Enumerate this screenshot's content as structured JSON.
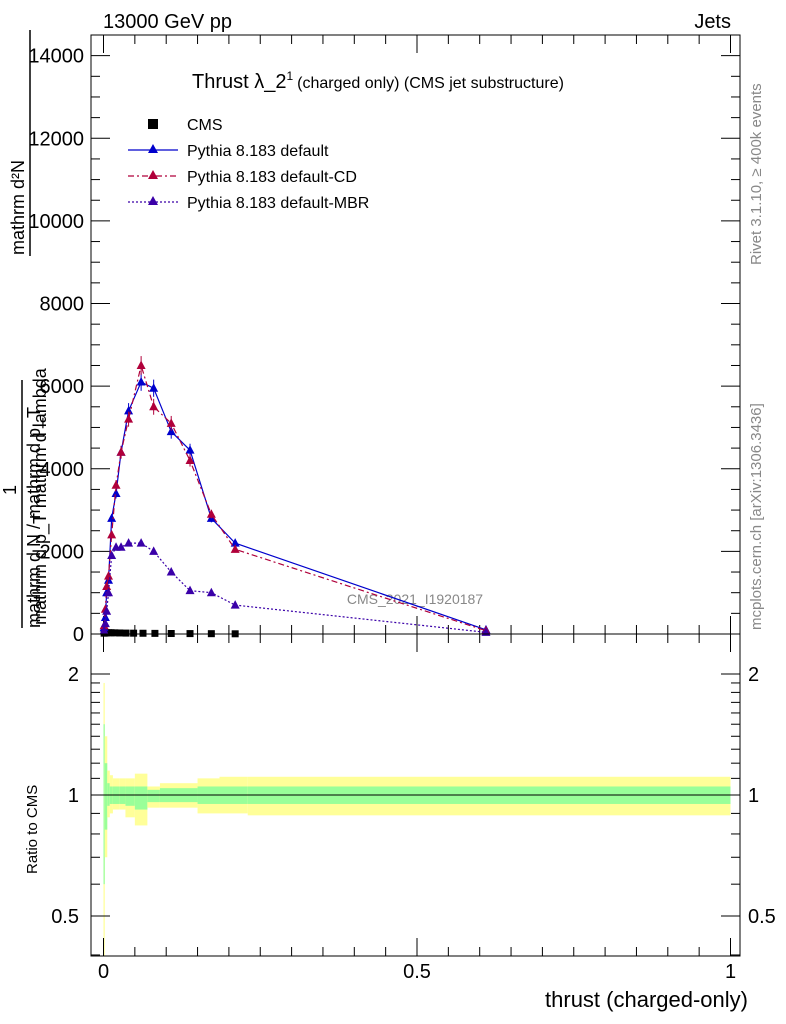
{
  "header": {
    "left": "13000 GeV pp",
    "right": "Jets"
  },
  "side": {
    "rivet": "Rivet 3.1.10, ≥ 400k events",
    "mcplots": "mcplots.cern.ch [arXiv:1306.3436]"
  },
  "watermark": "CMS_2021_I1920187",
  "ratio_ylabel": "Ratio to CMS",
  "xlabel": "thrust (charged-only)",
  "ylabel_parts": {
    "numerator": "mathrm d²N",
    "denominator": "mathrm d p_T mathrm d lambda",
    "prefix": "1",
    "prefix_den": "mathrm d N / mathrm d p_T"
  },
  "colors": {
    "cms": "#000000",
    "default": "#0000cc",
    "cd": "#b0003a",
    "mbr": "#3a00a8",
    "band_yellow": "#ffff99",
    "band_green": "#99ff99"
  },
  "chart_data": {
    "type": "line",
    "title": "Thrust λ_2",
    "title_sup": "1",
    "title_suffix": "(charged only) (CMS jet substructure)",
    "xlim": [
      0,
      1
    ],
    "ylim": [
      0,
      14500
    ],
    "x_ticks": [
      0,
      0.5,
      1
    ],
    "x_tick_labels": [
      "0",
      "0.5",
      "1"
    ],
    "y_ticks": [
      0,
      2000,
      4000,
      6000,
      8000,
      10000,
      12000,
      14000
    ],
    "y_tick_labels": [
      "0",
      "2000",
      "4000",
      "6000",
      "8000",
      "10000",
      "12000",
      "14000"
    ],
    "legend": [
      "CMS",
      "Pythia 8.183 default",
      "Pythia 8.183 default-CD",
      "Pythia 8.183 default-MBR"
    ],
    "series": [
      {
        "name": "CMS",
        "style": "points",
        "x": [
          0.001,
          0.003,
          0.005,
          0.008,
          0.012,
          0.018,
          0.026,
          0.036,
          0.048,
          0.063,
          0.082,
          0.108,
          0.138,
          0.172,
          0.21
        ],
        "y": [
          20,
          25,
          30,
          30,
          30,
          28,
          25,
          22,
          20,
          18,
          15,
          12,
          10,
          8,
          5
        ]
      },
      {
        "name": "Pythia 8.183 default",
        "style": "solid",
        "x": [
          0.001,
          0.003,
          0.005,
          0.008,
          0.013,
          0.02,
          0.028,
          0.04,
          0.06,
          0.08,
          0.108,
          0.138,
          0.172,
          0.21,
          0.61
        ],
        "y": [
          150,
          400,
          1000,
          1300,
          2800,
          3400,
          4400,
          5400,
          6100,
          5950,
          4900,
          4450,
          2800,
          2200,
          100
        ]
      },
      {
        "name": "Pythia 8.183 default-CD",
        "style": "dashdot",
        "x": [
          0.001,
          0.003,
          0.005,
          0.008,
          0.013,
          0.02,
          0.028,
          0.04,
          0.06,
          0.08,
          0.108,
          0.138,
          0.172,
          0.21,
          0.61
        ],
        "y": [
          200,
          600,
          1150,
          1400,
          2400,
          3600,
          4400,
          5200,
          6500,
          5500,
          5100,
          4200,
          2900,
          2050,
          80
        ]
      },
      {
        "name": "Pythia 8.183 default-MBR",
        "style": "dotted",
        "x": [
          0.001,
          0.003,
          0.005,
          0.008,
          0.013,
          0.02,
          0.028,
          0.04,
          0.06,
          0.08,
          0.108,
          0.138,
          0.172,
          0.21,
          0.61
        ],
        "y": [
          80,
          250,
          550,
          1000,
          1900,
          2100,
          2100,
          2200,
          2200,
          2000,
          1500,
          1050,
          1000,
          700,
          40
        ]
      }
    ],
    "ratio": {
      "ylim": [
        0.35,
        2.3
      ],
      "y_ticks": [
        0.5,
        1,
        2
      ],
      "y_tick_labels": [
        "0.5",
        "1",
        "2"
      ],
      "reference": 1,
      "band_edges": [
        0,
        0.002,
        0.006,
        0.01,
        0.015,
        0.025,
        0.035,
        0.05,
        0.07,
        0.09,
        0.15,
        0.185,
        0.23,
        1.0
      ],
      "yellow": [
        [
          0.3,
          1.9
        ],
        [
          0.7,
          1.4
        ],
        [
          0.88,
          1.15
        ],
        [
          0.9,
          1.12
        ],
        [
          0.92,
          1.1
        ],
        [
          0.92,
          1.1
        ],
        [
          0.88,
          1.1
        ],
        [
          0.84,
          1.13
        ],
        [
          0.93,
          1.05
        ],
        [
          0.93,
          1.07
        ],
        [
          0.9,
          1.1
        ],
        [
          0.9,
          1.11
        ],
        [
          0.89,
          1.11
        ]
      ],
      "green": [
        [
          0.6,
          1.5
        ],
        [
          0.82,
          1.2
        ],
        [
          0.94,
          1.07
        ],
        [
          0.95,
          1.05
        ],
        [
          0.95,
          1.05
        ],
        [
          0.95,
          1.05
        ],
        [
          0.94,
          1.05
        ],
        [
          0.92,
          1.05
        ],
        [
          0.96,
          1.03
        ],
        [
          0.96,
          1.04
        ],
        [
          0.95,
          1.05
        ],
        [
          0.95,
          1.05
        ],
        [
          0.95,
          1.05
        ]
      ]
    }
  }
}
